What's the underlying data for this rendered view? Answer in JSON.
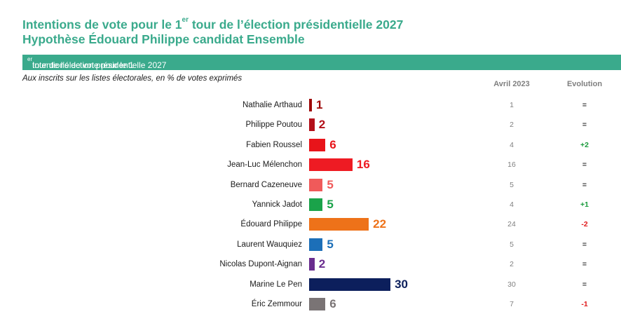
{
  "title": {
    "line1_before": "Intentions de vote pour le 1",
    "line1_sup": "er",
    "line1_after": " tour de l’élection présidentielle 2027",
    "line2": "Hypothèse Édouard Philippe candidat Ensemble"
  },
  "band": {
    "before": "Intentions de vote pour le 1",
    "sup": "er",
    "after": " tour de l’élection présidentielle 2027"
  },
  "subtitle": "Aux inscrits sur les listes électorales, en % de votes exprimés",
  "columns": {
    "previous": "Avril 2023",
    "evolution": "Evolution"
  },
  "colors": {
    "accent": "#3aaa8c",
    "positive": "#1a9a3c",
    "negative": "#e0191b",
    "neutral": "#333333"
  },
  "chart_data": {
    "type": "bar",
    "orientation": "horizontal",
    "categories": [
      "Nathalie Arthaud",
      "Philippe Poutou",
      "Fabien Roussel",
      "Jean-Luc Mélenchon",
      "Bernard Cazeneuve",
      "Yannick Jadot",
      "Édouard Philippe",
      "Laurent Wauquiez",
      "Nicolas Dupont-Aignan",
      "Marine Le Pen",
      "Éric Zemmour"
    ],
    "values": [
      1,
      2,
      6,
      16,
      5,
      5,
      22,
      5,
      2,
      30,
      6
    ],
    "colors": [
      "#9e0a0a",
      "#b3101a",
      "#e8141a",
      "#ee1b23",
      "#f05a5a",
      "#1aa34a",
      "#ee7219",
      "#1c6fb8",
      "#6a2d8f",
      "#0c1f5c",
      "#7a7475"
    ],
    "previous": [
      "1",
      "2",
      "4",
      "16",
      "5",
      "4",
      "24",
      "5",
      "2",
      "30",
      "7"
    ],
    "evolution": [
      "=",
      "=",
      "+2",
      "=",
      "=",
      "+1",
      "-2",
      "=",
      "=",
      "=",
      "-1"
    ]
  }
}
